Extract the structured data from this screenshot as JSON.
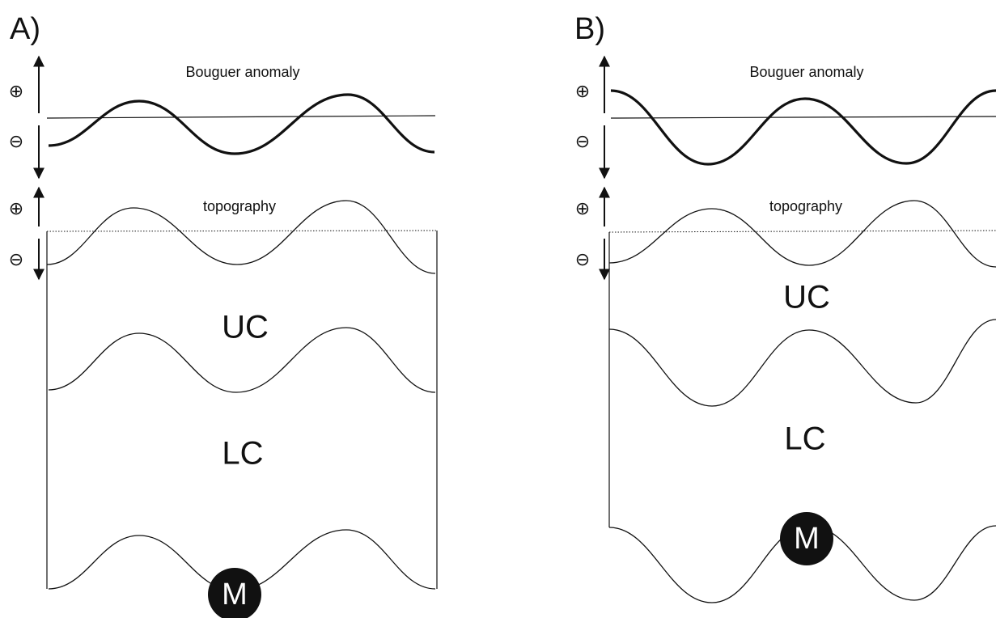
{
  "panels": [
    {
      "label": "A)",
      "bouguer": "Bouguer anomaly",
      "topography": "topography",
      "plus": "⊕",
      "minus": "⊖",
      "upper_crust": "UC",
      "lower_crust": "LC",
      "moho": "M"
    },
    {
      "label": "B)",
      "bouguer": "Bouguer anomaly",
      "topography": "topography",
      "plus": "⊕",
      "minus": "⊖",
      "upper_crust": "UC",
      "lower_crust": "LC",
      "moho": "M"
    }
  ]
}
